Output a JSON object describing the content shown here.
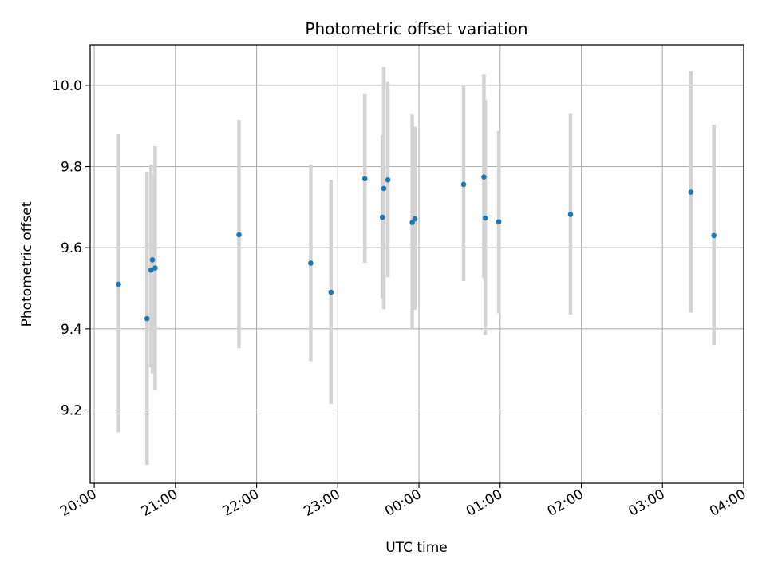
{
  "chart_data": {
    "type": "scatter",
    "title": "Photometric offset variation",
    "xlabel": "UTC time",
    "ylabel": "Photometric offset",
    "x_tick_labels": [
      "20:00",
      "21:00",
      "22:00",
      "23:00",
      "00:00",
      "01:00",
      "02:00",
      "03:00",
      "04:00"
    ],
    "x_ticks": [
      "20:00",
      "21:00",
      "22:00",
      "23:00",
      "00:00",
      "01:00",
      "02:00",
      "03:00",
      "04:00"
    ],
    "y_ticks": [
      9.2,
      9.4,
      9.6,
      9.8,
      10.0
    ],
    "y_tick_labels": [
      "9.2",
      "9.4",
      "9.6",
      "9.8",
      "10.0"
    ],
    "xlim": [
      "19:57",
      "04:00"
    ],
    "ylim": [
      9.02,
      10.1
    ],
    "grid": true,
    "colors": {
      "marker": "#1f77b4",
      "errorbar": "#d3d3d3",
      "grid": "#b0b0b0"
    },
    "points": [
      {
        "time": "20:18",
        "y": 9.51,
        "ymin": 9.145,
        "ymax": 9.88
      },
      {
        "time": "20:39",
        "y": 9.425,
        "ymin": 9.065,
        "ymax": 9.787
      },
      {
        "time": "20:42",
        "y": 9.545,
        "ymin": 9.305,
        "ymax": 9.805
      },
      {
        "time": "20:43",
        "y": 9.57,
        "ymin": 9.29,
        "ymax": 9.78
      },
      {
        "time": "20:45",
        "y": 9.55,
        "ymin": 9.25,
        "ymax": 9.85
      },
      {
        "time": "21:47",
        "y": 9.632,
        "ymin": 9.352,
        "ymax": 9.915
      },
      {
        "time": "22:40",
        "y": 9.562,
        "ymin": 9.32,
        "ymax": 9.805
      },
      {
        "time": "22:55",
        "y": 9.49,
        "ymin": 9.215,
        "ymax": 9.767
      },
      {
        "time": "23:20",
        "y": 9.77,
        "ymin": 9.563,
        "ymax": 9.978
      },
      {
        "time": "23:33",
        "y": 9.675,
        "ymin": 9.475,
        "ymax": 9.878
      },
      {
        "time": "23:34",
        "y": 9.746,
        "ymin": 9.448,
        "ymax": 10.045
      },
      {
        "time": "23:37",
        "y": 9.767,
        "ymin": 9.527,
        "ymax": 10.008
      },
      {
        "time": "23:55",
        "y": 9.662,
        "ymin": 9.4,
        "ymax": 9.928
      },
      {
        "time": "23:57",
        "y": 9.671,
        "ymin": 9.447,
        "ymax": 9.898
      },
      {
        "time": "00:33",
        "y": 9.756,
        "ymin": 9.518,
        "ymax": 9.998
      },
      {
        "time": "00:48",
        "y": 9.774,
        "ymin": 9.525,
        "ymax": 10.027
      },
      {
        "time": "00:49",
        "y": 9.673,
        "ymin": 9.385,
        "ymax": 9.965
      },
      {
        "time": "00:59",
        "y": 9.664,
        "ymin": 9.438,
        "ymax": 9.888
      },
      {
        "time": "01:52",
        "y": 9.682,
        "ymin": 9.435,
        "ymax": 9.93
      },
      {
        "time": "03:21",
        "y": 9.737,
        "ymin": 9.44,
        "ymax": 10.035
      },
      {
        "time": "03:38",
        "y": 9.63,
        "ymin": 9.36,
        "ymax": 9.903
      }
    ]
  }
}
